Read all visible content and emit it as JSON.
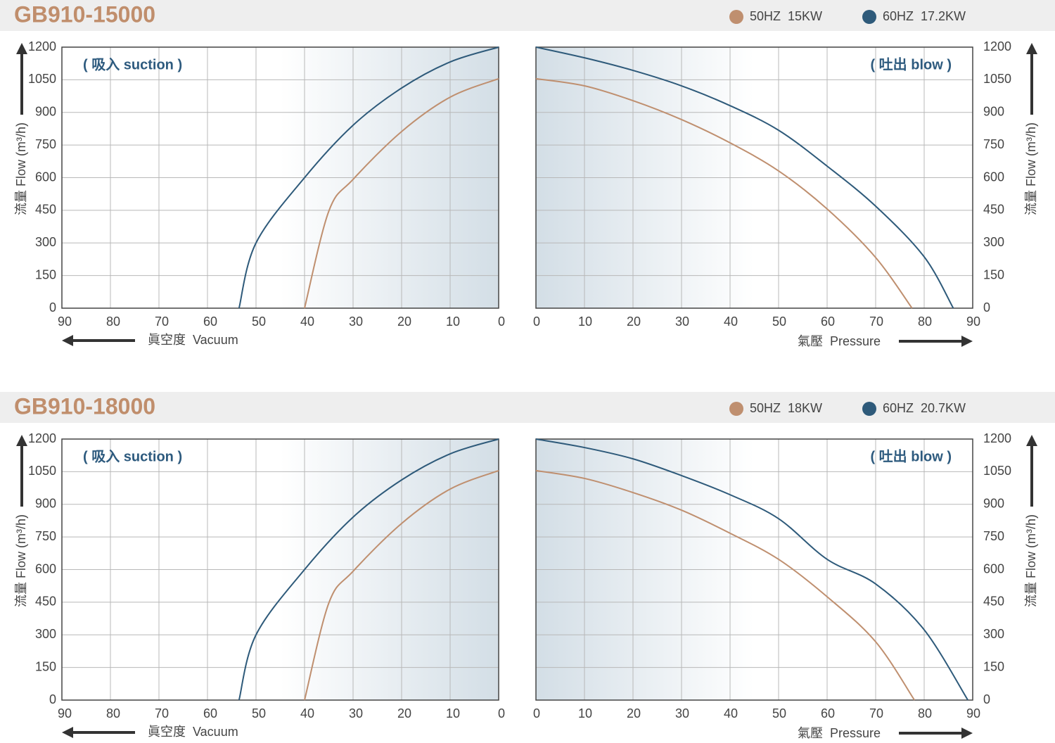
{
  "chart_data": [
    {
      "type": "line",
      "title": "GB910-15000",
      "annotation": "( 吸入 suction )",
      "xlabel": "眞空度  Vacuum",
      "ylabel": "流量 Flow (m³/h)",
      "xlim": [
        90,
        0
      ],
      "xticks": [
        90,
        80,
        70,
        60,
        50,
        40,
        30,
        20,
        10,
        0
      ],
      "ylim": [
        0,
        1200
      ],
      "yticks": [
        0,
        150,
        300,
        450,
        600,
        750,
        900,
        1050,
        1200
      ],
      "grid": true,
      "series": [
        {
          "name": "50HZ  15KW",
          "color": "#bf8f6f",
          "x": [
            40,
            35,
            30,
            20,
            10,
            0
          ],
          "values": [
            0,
            446,
            592,
            812,
            970,
            1055
          ]
        },
        {
          "name": "60HZ  17.2KW",
          "color": "#2e5a7a",
          "x": [
            53.5,
            50,
            40,
            30,
            20,
            10,
            0
          ],
          "values": [
            0,
            300,
            600,
            841,
            1012,
            1132,
            1200
          ]
        }
      ]
    },
    {
      "type": "line",
      "annotation": "( 吐出 blow )",
      "xlabel": "氣壓  Pressure",
      "ylabel": "流量 Flow (m³/h)",
      "xlim": [
        0,
        90
      ],
      "xticks": [
        0,
        10,
        20,
        30,
        40,
        50,
        60,
        70,
        80,
        90
      ],
      "ylim": [
        0,
        1200
      ],
      "yticks": [
        0,
        150,
        300,
        450,
        600,
        750,
        900,
        1050,
        1200
      ],
      "grid": true,
      "series": [
        {
          "color": "#bf8f6f",
          "x": [
            0,
            10,
            20,
            30,
            40,
            50,
            60,
            70,
            77.5
          ],
          "values": [
            1055,
            1022,
            954,
            867,
            760,
            631,
            456,
            233,
            0
          ]
        },
        {
          "color": "#2e5a7a",
          "x": [
            0,
            10,
            20,
            30,
            40,
            50,
            60,
            70,
            80,
            86
          ],
          "values": [
            1200,
            1151,
            1093,
            1022,
            931,
            818,
            653,
            469,
            236,
            0
          ]
        }
      ]
    },
    {
      "type": "line",
      "title": "GB910-18000",
      "annotation": "( 吸入 suction )",
      "xlabel": "眞空度  Vacuum",
      "ylabel": "流量 Flow (m³/h)",
      "xlim": [
        90,
        0
      ],
      "xticks": [
        90,
        80,
        70,
        60,
        50,
        40,
        30,
        20,
        10,
        0
      ],
      "ylim": [
        0,
        1200
      ],
      "yticks": [
        0,
        150,
        300,
        450,
        600,
        750,
        900,
        1050,
        1200
      ],
      "grid": true,
      "series": [
        {
          "name": "50HZ  18KW",
          "color": "#bf8f6f",
          "x": [
            40,
            35,
            30,
            20,
            10,
            0
          ],
          "values": [
            0,
            446,
            592,
            812,
            970,
            1055
          ]
        },
        {
          "name": "60HZ  20.7KW",
          "color": "#2e5a7a",
          "x": [
            53.5,
            50,
            40,
            30,
            20,
            10,
            0
          ],
          "values": [
            0,
            300,
            600,
            841,
            1012,
            1132,
            1200
          ]
        }
      ]
    },
    {
      "type": "line",
      "annotation": "( 吐出 blow )",
      "xlabel": "氣壓  Pressure",
      "ylabel": "流量 Flow (m³/h)",
      "xlim": [
        0,
        90
      ],
      "xticks": [
        0,
        10,
        20,
        30,
        40,
        50,
        60,
        70,
        80,
        90
      ],
      "ylim": [
        0,
        1200
      ],
      "yticks": [
        0,
        150,
        300,
        450,
        600,
        750,
        900,
        1050,
        1200
      ],
      "grid": true,
      "series": [
        {
          "color": "#bf8f6f",
          "x": [
            0,
            10,
            20,
            30,
            40,
            50,
            60,
            70,
            78
          ],
          "values": [
            1055,
            1019,
            954,
            873,
            767,
            647,
            475,
            268,
            0
          ]
        },
        {
          "color": "#2e5a7a",
          "x": [
            0,
            10,
            20,
            30,
            40,
            50,
            60,
            70,
            80,
            89
          ],
          "values": [
            1200,
            1161,
            1109,
            1032,
            944,
            834,
            647,
            534,
            323,
            0
          ]
        }
      ]
    }
  ]
}
